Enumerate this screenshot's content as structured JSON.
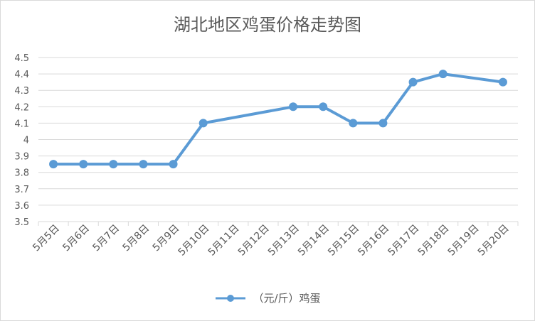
{
  "chart_data": {
    "type": "line",
    "title": "湖北地区鸡蛋价格走势图",
    "categories": [
      "5月5日",
      "5月6日",
      "5月7日",
      "5月8日",
      "5月9日",
      "5月10日",
      "5月11日",
      "5月12日",
      "5月13日",
      "5月14日",
      "5月15日",
      "5月16日",
      "5月17日",
      "5月18日",
      "5月19日",
      "5月20日"
    ],
    "series": [
      {
        "name": "（元/斤）鸡蛋",
        "values": [
          3.85,
          3.85,
          3.85,
          3.85,
          3.85,
          4.1,
          null,
          null,
          4.2,
          4.2,
          4.1,
          4.1,
          4.35,
          4.4,
          null,
          4.35
        ]
      }
    ],
    "ylim": [
      3.5,
      4.5
    ],
    "yticks": [
      "3.5",
      "3.6",
      "3.7",
      "3.8",
      "3.9",
      "4",
      "4.1",
      "4.2",
      "4.3",
      "4.4",
      "4.5"
    ],
    "xlabel": "",
    "ylabel": "",
    "grid": true,
    "legend_position": "bottom",
    "colors": {
      "series": "#5b9bd5",
      "grid": "#d9d9d9",
      "text": "#595959"
    }
  }
}
